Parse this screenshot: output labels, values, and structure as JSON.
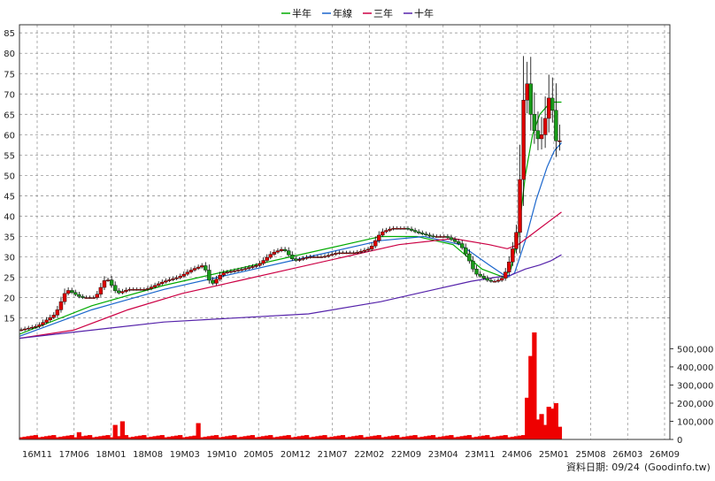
{
  "legend": [
    {
      "label": "半年",
      "color": "#00aa00"
    },
    {
      "label": "年線",
      "color": "#1a66cc"
    },
    {
      "label": "三年",
      "color": "#cc0044"
    },
    {
      "label": "十年",
      "color": "#5522aa"
    }
  ],
  "footer": {
    "data_date": "資料日期: 09/24",
    "source": "(Goodinfo.tw)"
  },
  "colors": {
    "up_candle": "#dd0000",
    "down_candle": "#1a9a1a",
    "volume_bar": "#ee0000",
    "grid": "#999999",
    "frame": "#333333"
  },
  "chart_data": {
    "type": "candlestick",
    "x_ticks": [
      "16M11",
      "17M06",
      "18M01",
      "18M08",
      "19M03",
      "19M10",
      "20M05",
      "20M12",
      "21M07",
      "22M02",
      "22M09",
      "23M04",
      "23M11",
      "24M06",
      "25M01",
      "25M08",
      "26M03",
      "26M09"
    ],
    "x_domain": [
      0,
      180
    ],
    "price_axis": {
      "ticks": [
        15,
        20,
        25,
        30,
        35,
        40,
        45,
        50,
        55,
        60,
        65,
        70,
        75,
        80,
        85
      ],
      "ylim": [
        11,
        87
      ],
      "grid": true
    },
    "volume_axis": {
      "ticks": [
        0,
        100000,
        200000,
        300000,
        400000,
        500000
      ],
      "tick_labels": [
        "0",
        "100,000",
        "200,000",
        "300,000",
        "400,000",
        "500,000"
      ],
      "ylim": [
        0,
        580000
      ]
    },
    "close_knots": [
      [
        0,
        12
      ],
      [
        5,
        13
      ],
      [
        10,
        16
      ],
      [
        13,
        22
      ],
      [
        17,
        20
      ],
      [
        21,
        20
      ],
      [
        24,
        25
      ],
      [
        27,
        21
      ],
      [
        30,
        22
      ],
      [
        35,
        22
      ],
      [
        40,
        24
      ],
      [
        44,
        25
      ],
      [
        48,
        27
      ],
      [
        51,
        28
      ],
      [
        53,
        23
      ],
      [
        56,
        26
      ],
      [
        62,
        27
      ],
      [
        66,
        28
      ],
      [
        70,
        31
      ],
      [
        73,
        32
      ],
      [
        76,
        29
      ],
      [
        80,
        30
      ],
      [
        84,
        30
      ],
      [
        88,
        31
      ],
      [
        93,
        31
      ],
      [
        97,
        32
      ],
      [
        100,
        36
      ],
      [
        103,
        37
      ],
      [
        107,
        37
      ],
      [
        110,
        36
      ],
      [
        114,
        35
      ],
      [
        118,
        35
      ],
      [
        122,
        33
      ],
      [
        124,
        30
      ],
      [
        126,
        26
      ],
      [
        128,
        25
      ],
      [
        130,
        24
      ],
      [
        132,
        24
      ],
      [
        134,
        25
      ],
      [
        136,
        30
      ],
      [
        138,
        38
      ],
      [
        139,
        60
      ],
      [
        140,
        77
      ],
      [
        141,
        68
      ],
      [
        142,
        62
      ],
      [
        144,
        58
      ],
      [
        146,
        66
      ],
      [
        147,
        72
      ],
      [
        148,
        60
      ],
      [
        149,
        57
      ],
      [
        150,
        60
      ]
    ],
    "series": [
      {
        "name": "半年",
        "values": [
          [
            0,
            11
          ],
          [
            20,
            18
          ],
          [
            40,
            23
          ],
          [
            60,
            27
          ],
          [
            80,
            31
          ],
          [
            100,
            35
          ],
          [
            110,
            35
          ],
          [
            120,
            33
          ],
          [
            128,
            27
          ],
          [
            134,
            25
          ],
          [
            136,
            27
          ],
          [
            138,
            35
          ],
          [
            140,
            50
          ],
          [
            142,
            60
          ],
          [
            144,
            65
          ],
          [
            146,
            67
          ],
          [
            148,
            68
          ],
          [
            150,
            68
          ]
        ]
      },
      {
        "name": "年線",
        "values": [
          [
            0,
            10.5
          ],
          [
            20,
            17
          ],
          [
            40,
            22
          ],
          [
            60,
            26
          ],
          [
            80,
            30
          ],
          [
            100,
            34
          ],
          [
            112,
            35
          ],
          [
            122,
            33
          ],
          [
            130,
            28
          ],
          [
            135,
            25
          ],
          [
            137,
            26
          ],
          [
            140,
            34
          ],
          [
            143,
            44
          ],
          [
            146,
            52
          ],
          [
            148,
            56
          ],
          [
            150,
            58
          ]
        ]
      },
      {
        "name": "三年",
        "values": [
          [
            0,
            10
          ],
          [
            15,
            12
          ],
          [
            30,
            17
          ],
          [
            45,
            21
          ],
          [
            60,
            24
          ],
          [
            75,
            27
          ],
          [
            90,
            30
          ],
          [
            105,
            33
          ],
          [
            120,
            34.5
          ],
          [
            130,
            33
          ],
          [
            135,
            32
          ],
          [
            138,
            33
          ],
          [
            141,
            35
          ],
          [
            144,
            37
          ],
          [
            147,
            39
          ],
          [
            150,
            41
          ]
        ]
      },
      {
        "name": "十年",
        "values": [
          [
            0,
            10
          ],
          [
            20,
            12
          ],
          [
            40,
            14
          ],
          [
            60,
            15
          ],
          [
            80,
            16
          ],
          [
            100,
            19
          ],
          [
            115,
            22
          ],
          [
            125,
            24
          ],
          [
            132,
            25
          ],
          [
            136,
            25.5
          ],
          [
            140,
            27
          ],
          [
            144,
            28
          ],
          [
            147,
            29
          ],
          [
            150,
            30.5
          ]
        ]
      }
    ],
    "volume_spikes": [
      [
        16,
        40000
      ],
      [
        26,
        80000
      ],
      [
        28,
        100000
      ],
      [
        49,
        90000
      ],
      [
        140,
        230000
      ],
      [
        141,
        460000
      ],
      [
        142,
        590000
      ],
      [
        143,
        110000
      ],
      [
        144,
        140000
      ],
      [
        145,
        80000
      ],
      [
        146,
        180000
      ],
      [
        147,
        170000
      ],
      [
        148,
        200000
      ],
      [
        149,
        70000
      ],
      [
        150,
        40000
      ]
    ]
  }
}
